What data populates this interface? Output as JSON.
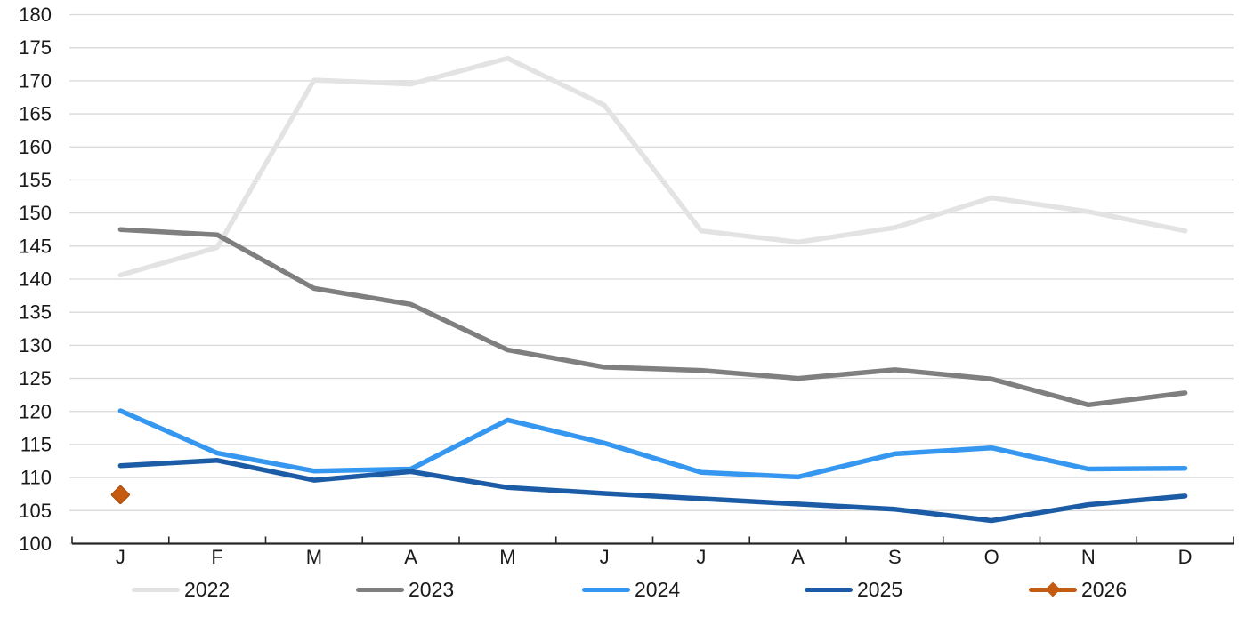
{
  "chart_data": {
    "type": "line",
    "title": "",
    "x_axis": {
      "tick_labels": [
        "J",
        "F",
        "M",
        "A",
        "M",
        "J",
        "J",
        "A",
        "S",
        "O",
        "N",
        "D"
      ]
    },
    "y_axis": {
      "tick_labels": [
        "180",
        "175",
        "170",
        "165",
        "160",
        "155",
        "150",
        "145",
        "140",
        "135",
        "130",
        "125",
        "120",
        "115",
        "110",
        "105",
        "100"
      ],
      "min": 100,
      "max": 180,
      "step": 5
    },
    "grid": "horizontal",
    "legend_position": "bottom",
    "series": [
      {
        "name": "2022",
        "color": "#E3E3E3",
        "style": "line",
        "values": [
          140.6,
          144.8,
          170.1,
          169.5,
          173.4,
          166.3,
          147.3,
          145.6,
          147.8,
          152.3,
          150.2,
          147.3
        ]
      },
      {
        "name": "2023",
        "color": "#7F7F7F",
        "style": "line",
        "values": [
          147.5,
          146.7,
          138.6,
          136.2,
          129.3,
          126.7,
          126.2,
          125.0,
          126.3,
          124.9,
          121.0,
          122.8
        ]
      },
      {
        "name": "2024",
        "color": "#3597F0",
        "style": "line",
        "values": [
          120.1,
          113.7,
          111.0,
          111.3,
          118.7,
          115.2,
          110.8,
          110.1,
          113.6,
          114.5,
          111.3,
          111.4
        ]
      },
      {
        "name": "2025",
        "color": "#1C5CA6",
        "style": "line",
        "values": [
          111.8,
          112.6,
          109.6,
          110.9,
          108.5,
          107.6,
          106.8,
          106.0,
          105.2,
          103.5,
          105.9,
          107.2
        ]
      },
      {
        "name": "2026",
        "color": "#C55A11",
        "style": "line-diamond",
        "marker": "diamond",
        "marker_border": "#A34C0D",
        "values": [
          107.4,
          null,
          null,
          null,
          null,
          null,
          null,
          null,
          null,
          null,
          null,
          null
        ]
      }
    ],
    "colors": {
      "gridline": "#D9D9D9",
      "axis": "#262626",
      "text": "#1A1A1A",
      "background": "#FFFFFF"
    }
  }
}
